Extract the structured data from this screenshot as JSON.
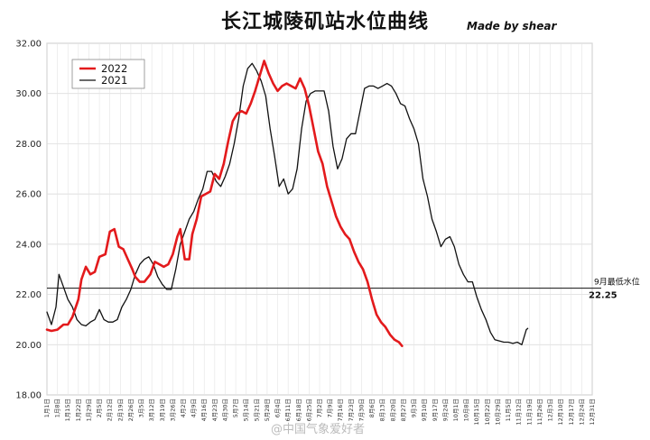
{
  "chart_data": {
    "type": "line",
    "title": "长江城陵矶站水位曲线",
    "credit": "Made by shear",
    "watermark": "@中国气象爱好者",
    "ylim": [
      18,
      32
    ],
    "yticks": [
      "18.00",
      "20.00",
      "22.00",
      "24.00",
      "26.00",
      "28.00",
      "30.00",
      "32.00"
    ],
    "grid": true,
    "legend_position": "top-left",
    "x_tick_labels": [
      "1月1日",
      "1月8日",
      "1月15日",
      "1月22日",
      "1月29日",
      "2月5日",
      "2月12日",
      "2月19日",
      "2月26日",
      "3月5日",
      "3月12日",
      "3月19日",
      "3月26日",
      "4月2日",
      "4月9日",
      "4月16日",
      "4月23日",
      "4月30日",
      "5月7日",
      "5月14日",
      "5月21日",
      "5月28日",
      "6月4日",
      "6月11日",
      "6月18日",
      "6月25日",
      "7月2日",
      "7月9日",
      "7月16日",
      "7月23日",
      "7月30日",
      "8月6日",
      "8月13日",
      "8月20日",
      "8月27日",
      "9月3日",
      "9月10日",
      "9月17日",
      "9月24日",
      "10月1日",
      "10月8日",
      "10月15日",
      "10月22日",
      "10月29日",
      "11月5日",
      "11月12日",
      "11月19日",
      "11月26日",
      "12月3日",
      "12月10日",
      "12月17日",
      "12月24日",
      "12月31日"
    ],
    "x_unit": "day of year (1 = Jan 1)",
    "annotation": {
      "label": "9月最低水位",
      "value_label": "22.25",
      "y": 22.25
    },
    "series": [
      {
        "name": "2022",
        "color": "#e31a1c",
        "points": [
          [
            1,
            20.6
          ],
          [
            4,
            20.55
          ],
          [
            8,
            20.6
          ],
          [
            12,
            20.8
          ],
          [
            15,
            20.8
          ],
          [
            18,
            21.1
          ],
          [
            22,
            21.8
          ],
          [
            24,
            22.6
          ],
          [
            27,
            23.1
          ],
          [
            30,
            22.8
          ],
          [
            33,
            22.9
          ],
          [
            36,
            23.5
          ],
          [
            40,
            23.6
          ],
          [
            43,
            24.5
          ],
          [
            46,
            24.6
          ],
          [
            49,
            23.9
          ],
          [
            52,
            23.8
          ],
          [
            55,
            23.4
          ],
          [
            58,
            23.0
          ],
          [
            60,
            22.7
          ],
          [
            63,
            22.5
          ],
          [
            66,
            22.5
          ],
          [
            70,
            22.8
          ],
          [
            73,
            23.3
          ],
          [
            76,
            23.2
          ],
          [
            79,
            23.1
          ],
          [
            82,
            23.2
          ],
          [
            85,
            23.6
          ],
          [
            88,
            24.3
          ],
          [
            90,
            24.6
          ],
          [
            93,
            23.4
          ],
          [
            96,
            23.4
          ],
          [
            98,
            24.4
          ],
          [
            101,
            25.0
          ],
          [
            104,
            25.9
          ],
          [
            107,
            26.0
          ],
          [
            110,
            26.1
          ],
          [
            113,
            26.8
          ],
          [
            116,
            26.6
          ],
          [
            119,
            27.2
          ],
          [
            122,
            28.1
          ],
          [
            125,
            28.9
          ],
          [
            128,
            29.2
          ],
          [
            131,
            29.3
          ],
          [
            134,
            29.2
          ],
          [
            137,
            29.6
          ],
          [
            140,
            30.1
          ],
          [
            143,
            30.7
          ],
          [
            146,
            31.3
          ],
          [
            149,
            30.8
          ],
          [
            152,
            30.4
          ],
          [
            155,
            30.1
          ],
          [
            158,
            30.3
          ],
          [
            161,
            30.4
          ],
          [
            164,
            30.3
          ],
          [
            167,
            30.2
          ],
          [
            170,
            30.6
          ],
          [
            173,
            30.2
          ],
          [
            176,
            29.5
          ],
          [
            179,
            28.6
          ],
          [
            182,
            27.7
          ],
          [
            185,
            27.2
          ],
          [
            188,
            26.3
          ],
          [
            191,
            25.7
          ],
          [
            194,
            25.1
          ],
          [
            197,
            24.7
          ],
          [
            200,
            24.4
          ],
          [
            203,
            24.2
          ],
          [
            206,
            23.7
          ],
          [
            209,
            23.3
          ],
          [
            212,
            23.0
          ],
          [
            215,
            22.5
          ],
          [
            218,
            21.8
          ],
          [
            221,
            21.2
          ],
          [
            224,
            20.9
          ],
          [
            227,
            20.7
          ],
          [
            230,
            20.4
          ],
          [
            233,
            20.2
          ],
          [
            236,
            20.1
          ],
          [
            238,
            19.95
          ]
        ]
      },
      {
        "name": "2021",
        "color": "#111111",
        "points": [
          [
            1,
            21.3
          ],
          [
            4,
            20.8
          ],
          [
            7,
            21.5
          ],
          [
            9,
            22.8
          ],
          [
            12,
            22.3
          ],
          [
            15,
            21.8
          ],
          [
            18,
            21.5
          ],
          [
            21,
            21.0
          ],
          [
            24,
            20.8
          ],
          [
            27,
            20.75
          ],
          [
            30,
            20.9
          ],
          [
            33,
            21.0
          ],
          [
            36,
            21.4
          ],
          [
            39,
            21.0
          ],
          [
            42,
            20.9
          ],
          [
            45,
            20.9
          ],
          [
            48,
            21.0
          ],
          [
            51,
            21.5
          ],
          [
            54,
            21.8
          ],
          [
            57,
            22.2
          ],
          [
            60,
            22.8
          ],
          [
            63,
            23.2
          ],
          [
            66,
            23.4
          ],
          [
            69,
            23.5
          ],
          [
            72,
            23.2
          ],
          [
            75,
            22.7
          ],
          [
            78,
            22.4
          ],
          [
            81,
            22.2
          ],
          [
            84,
            22.2
          ],
          [
            87,
            23.0
          ],
          [
            90,
            24.0
          ],
          [
            93,
            24.5
          ],
          [
            96,
            25.0
          ],
          [
            99,
            25.3
          ],
          [
            102,
            25.8
          ],
          [
            105,
            26.2
          ],
          [
            108,
            26.9
          ],
          [
            111,
            26.9
          ],
          [
            114,
            26.5
          ],
          [
            117,
            26.3
          ],
          [
            120,
            26.7
          ],
          [
            123,
            27.2
          ],
          [
            126,
            28.0
          ],
          [
            129,
            29.0
          ],
          [
            132,
            30.3
          ],
          [
            135,
            31.0
          ],
          [
            138,
            31.2
          ],
          [
            141,
            30.9
          ],
          [
            144,
            30.5
          ],
          [
            147,
            29.9
          ],
          [
            150,
            28.6
          ],
          [
            153,
            27.5
          ],
          [
            156,
            26.3
          ],
          [
            159,
            26.6
          ],
          [
            162,
            26.0
          ],
          [
            165,
            26.2
          ],
          [
            168,
            27.0
          ],
          [
            171,
            28.6
          ],
          [
            174,
            29.7
          ],
          [
            177,
            30.0
          ],
          [
            180,
            30.1
          ],
          [
            183,
            30.1
          ],
          [
            186,
            30.1
          ],
          [
            189,
            29.3
          ],
          [
            192,
            27.9
          ],
          [
            195,
            27.0
          ],
          [
            198,
            27.4
          ],
          [
            201,
            28.2
          ],
          [
            204,
            28.4
          ],
          [
            207,
            28.4
          ],
          [
            210,
            29.3
          ],
          [
            213,
            30.2
          ],
          [
            216,
            30.3
          ],
          [
            219,
            30.3
          ],
          [
            222,
            30.2
          ],
          [
            225,
            30.3
          ],
          [
            228,
            30.4
          ],
          [
            231,
            30.3
          ],
          [
            234,
            30.0
          ],
          [
            237,
            29.6
          ],
          [
            240,
            29.5
          ],
          [
            243,
            29.0
          ],
          [
            246,
            28.6
          ],
          [
            249,
            28.0
          ],
          [
            252,
            26.6
          ],
          [
            255,
            25.9
          ],
          [
            258,
            25.0
          ],
          [
            261,
            24.5
          ],
          [
            264,
            23.9
          ],
          [
            267,
            24.2
          ],
          [
            270,
            24.3
          ],
          [
            273,
            23.9
          ],
          [
            276,
            23.2
          ],
          [
            279,
            22.8
          ],
          [
            282,
            22.5
          ],
          [
            285,
            22.5
          ],
          [
            288,
            21.9
          ],
          [
            291,
            21.4
          ],
          [
            294,
            21.0
          ],
          [
            297,
            20.5
          ],
          [
            300,
            20.2
          ],
          [
            303,
            20.15
          ],
          [
            306,
            20.1
          ],
          [
            309,
            20.1
          ],
          [
            312,
            20.05
          ],
          [
            315,
            20.1
          ],
          [
            318,
            20.0
          ],
          [
            321,
            20.6
          ],
          [
            322,
            20.65
          ]
        ]
      }
    ]
  }
}
